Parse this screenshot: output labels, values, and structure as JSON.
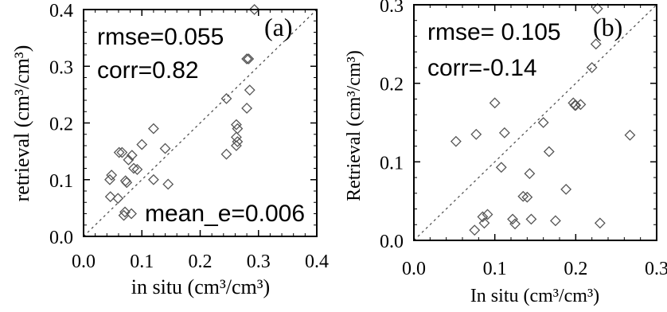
{
  "chart_data": [
    {
      "type": "scatter",
      "panel_label": "(a)",
      "xlabel": "in situ (cm³/cm³)",
      "ylabel": "retrieval (cm³/cm³)",
      "xlim": [
        0.0,
        0.4
      ],
      "ylim": [
        0.0,
        0.4
      ],
      "xticks": [
        "0.0",
        "0.1",
        "0.2",
        "0.3",
        "0.4"
      ],
      "yticks": [
        "0.0",
        "0.1",
        "0.2",
        "0.3",
        "0.4"
      ],
      "grid": false,
      "one_to_one_line": true,
      "marker": "diamond",
      "stats": {
        "rmse": "rmse=0.055",
        "corr": "corr=0.82",
        "mean_e": "mean_e=0.006"
      },
      "x": [
        0.045,
        0.048,
        0.046,
        0.059,
        0.061,
        0.066,
        0.069,
        0.072,
        0.074,
        0.071,
        0.077,
        0.083,
        0.086,
        0.082,
        0.092,
        0.1,
        0.12,
        0.12,
        0.14,
        0.145,
        0.245,
        0.245,
        0.262,
        0.264,
        0.262,
        0.264,
        0.262,
        0.28,
        0.28,
        0.283,
        0.285,
        0.293
      ],
      "y": [
        0.1,
        0.108,
        0.07,
        0.067,
        0.148,
        0.148,
        0.037,
        0.098,
        0.095,
        0.043,
        0.135,
        0.143,
        0.12,
        0.04,
        0.118,
        0.162,
        0.19,
        0.1,
        0.155,
        0.092,
        0.243,
        0.145,
        0.197,
        0.19,
        0.175,
        0.167,
        0.16,
        0.313,
        0.226,
        0.313,
        0.258,
        0.4
      ]
    },
    {
      "type": "scatter",
      "panel_label": "(b)",
      "xlabel": "In situ (cm³/cm³)",
      "ylabel": "Retrieval (cm³/cm³)",
      "xlim": [
        0.0,
        0.3
      ],
      "ylim": [
        0.0,
        0.3
      ],
      "xticks": [
        "0.0",
        "0.1",
        "0.2",
        "0.3"
      ],
      "yticks": [
        "0.0",
        "0.1",
        "0.2",
        "0.3"
      ],
      "grid": false,
      "one_to_one_line": true,
      "marker": "diamond",
      "stats": {
        "rmse": "rmse= 0.105",
        "corr": "corr=-0.14"
      },
      "x": [
        0.052,
        0.075,
        0.077,
        0.085,
        0.087,
        0.091,
        0.1,
        0.108,
        0.112,
        0.122,
        0.125,
        0.135,
        0.14,
        0.143,
        0.145,
        0.16,
        0.167,
        0.175,
        0.188,
        0.197,
        0.199,
        0.2,
        0.206,
        0.22,
        0.225,
        0.227,
        0.23,
        0.267
      ],
      "y": [
        0.126,
        0.013,
        0.135,
        0.03,
        0.022,
        0.033,
        0.175,
        0.093,
        0.137,
        0.027,
        0.021,
        0.056,
        0.055,
        0.085,
        0.027,
        0.15,
        0.113,
        0.025,
        0.065,
        0.175,
        0.172,
        0.172,
        0.173,
        0.22,
        0.25,
        0.295,
        0.022,
        0.134
      ]
    }
  ]
}
